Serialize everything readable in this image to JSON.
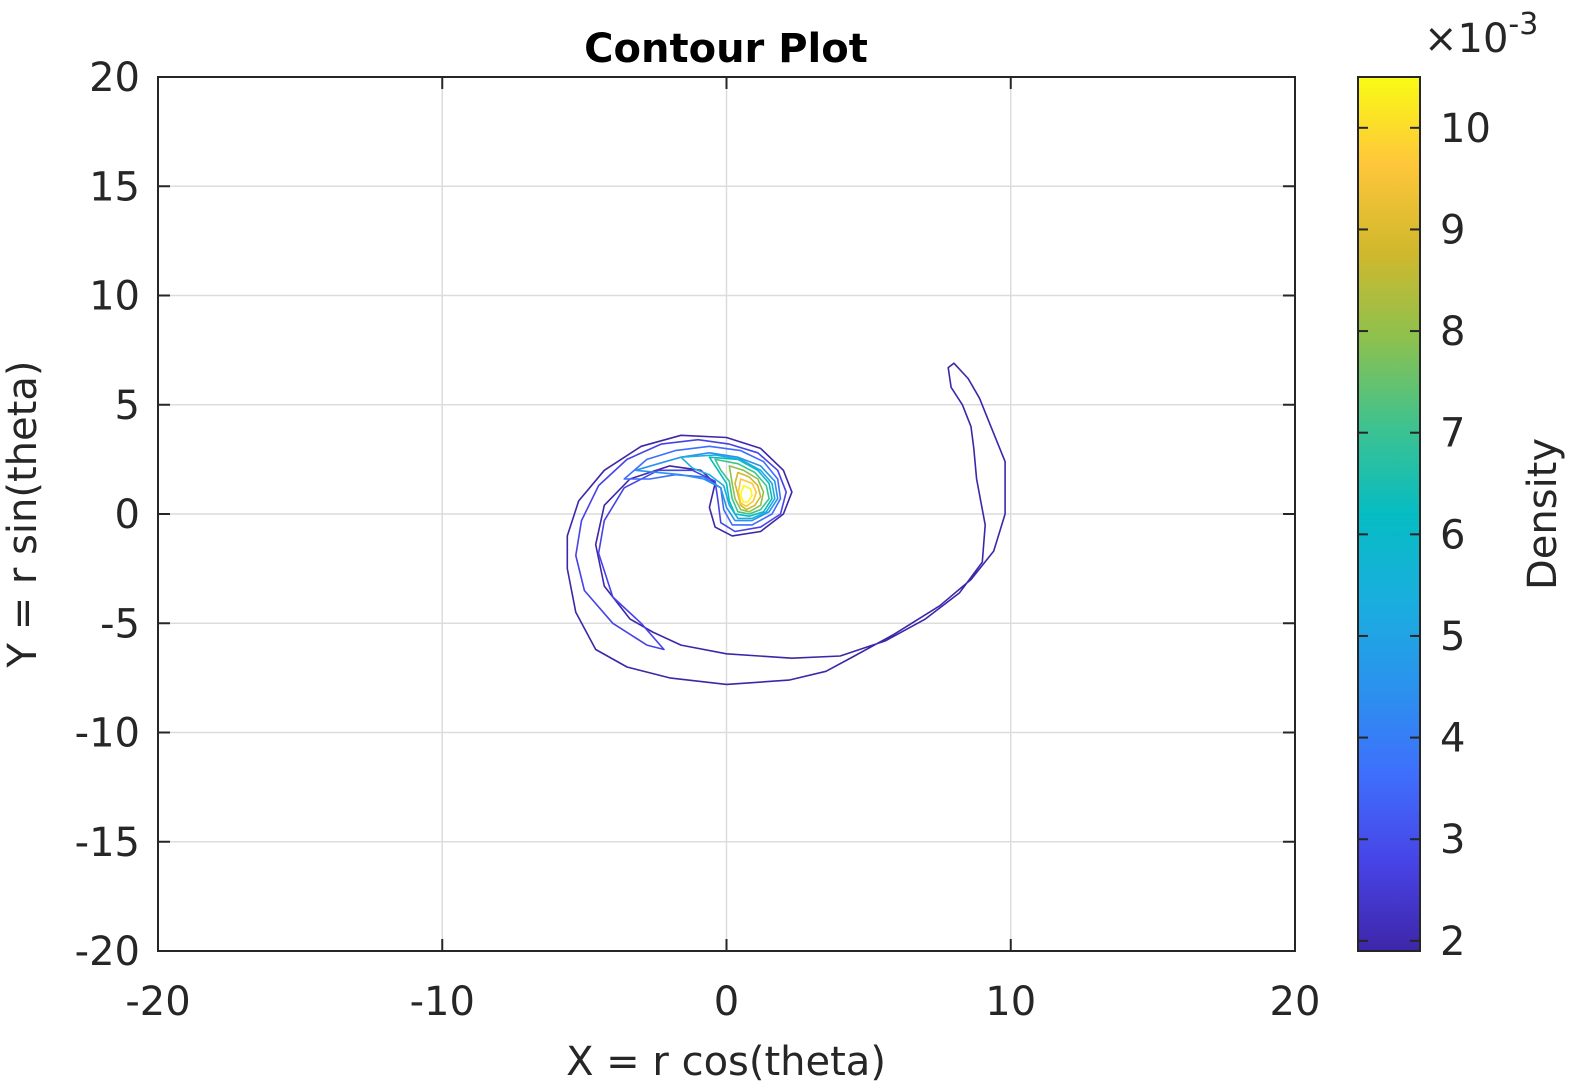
{
  "chart_data": {
    "type": "contour",
    "title": "Contour Plot",
    "xlabel": "X = r cos(theta)",
    "ylabel": "Y = r sin(theta)",
    "xlim": [
      -20,
      20
    ],
    "ylim": [
      -20,
      20
    ],
    "xticks": [
      -20,
      -10,
      0,
      10,
      20
    ],
    "yticks": [
      -20,
      -15,
      -10,
      -5,
      0,
      5,
      10,
      15,
      20
    ],
    "xtick_labels": [
      "-20",
      "-10",
      "0",
      "10",
      "20"
    ],
    "ytick_labels": [
      "-20",
      "-15",
      "-10",
      "-5",
      "0",
      "5",
      "10",
      "15",
      "20"
    ],
    "grid": true,
    "colorbar": {
      "label": "Density",
      "range": [
        1.9,
        10.5
      ],
      "ticks": [
        2,
        3,
        4,
        5,
        6,
        7,
        8,
        9,
        10
      ],
      "tick_labels": [
        "2",
        "3",
        "4",
        "5",
        "6",
        "7",
        "8",
        "9",
        "10"
      ],
      "multiplier": "×10",
      "exponent": "-3",
      "colormap": [
        "#3e26a8",
        "#4743e6",
        "#3f6efc",
        "#2b92ee",
        "#1aaede",
        "#06bcc3",
        "#3ec28f",
        "#8cc14e",
        "#d1b82d",
        "#fec63a",
        "#f9fb15"
      ]
    },
    "contours": [
      {
        "level": 2.2,
        "color": "#3e26a8",
        "points": [
          [
            8.0,
            6.9
          ],
          [
            8.5,
            6.2
          ],
          [
            8.9,
            5.3
          ],
          [
            9.3,
            4.0
          ],
          [
            9.8,
            2.4
          ],
          [
            9.8,
            0.0
          ],
          [
            9.4,
            -1.7
          ],
          [
            8.6,
            -3.0
          ],
          [
            7.5,
            -4.2
          ],
          [
            5.9,
            -5.5
          ],
          [
            4.5,
            -6.5
          ],
          [
            3.5,
            -7.2
          ],
          [
            2.2,
            -7.6
          ],
          [
            0.0,
            -7.8
          ],
          [
            -2.0,
            -7.5
          ],
          [
            -3.5,
            -7.0
          ],
          [
            -4.6,
            -6.2
          ],
          [
            -5.3,
            -4.5
          ],
          [
            -5.6,
            -2.5
          ],
          [
            -5.6,
            -1.0
          ],
          [
            -5.2,
            0.6
          ],
          [
            -4.3,
            2.0
          ],
          [
            -3.0,
            3.1
          ],
          [
            -1.6,
            3.6
          ],
          [
            0.0,
            3.5
          ],
          [
            1.2,
            3.0
          ],
          [
            2.0,
            2.0
          ],
          [
            2.3,
            1.0
          ],
          [
            2.0,
            0.0
          ],
          [
            1.2,
            -0.8
          ],
          [
            0.2,
            -1.0
          ],
          [
            -0.4,
            -0.6
          ],
          [
            -0.6,
            0.3
          ],
          [
            -0.4,
            1.4
          ],
          [
            -0.9,
            2.0
          ],
          [
            -2.0,
            2.2
          ],
          [
            -3.4,
            1.6
          ],
          [
            -4.3,
            0.4
          ],
          [
            -4.6,
            -1.4
          ],
          [
            -4.3,
            -3.3
          ],
          [
            -3.4,
            -4.8
          ],
          [
            -2.6,
            -5.4
          ],
          [
            -1.6,
            -6.0
          ],
          [
            0.0,
            -6.4
          ],
          [
            2.3,
            -6.6
          ],
          [
            4.0,
            -6.5
          ],
          [
            5.6,
            -5.8
          ],
          [
            7.0,
            -4.8
          ],
          [
            8.2,
            -3.6
          ],
          [
            9.0,
            -2.2
          ],
          [
            9.1,
            -0.5
          ],
          [
            8.8,
            1.6
          ],
          [
            8.7,
            3.0
          ],
          [
            8.6,
            4.0
          ],
          [
            8.3,
            5.0
          ],
          [
            7.9,
            5.8
          ],
          [
            7.8,
            6.7
          ],
          [
            8.0,
            6.9
          ]
        ],
        "closed": true
      },
      {
        "level": 3.0,
        "color": "#4743e6",
        "points": [
          [
            -1.0,
            3.4
          ],
          [
            0.1,
            3.2
          ],
          [
            1.1,
            2.8
          ],
          [
            1.8,
            2.0
          ],
          [
            2.1,
            1.0
          ],
          [
            1.9,
            0.0
          ],
          [
            1.2,
            -0.6
          ],
          [
            0.3,
            -0.8
          ],
          [
            -0.2,
            -0.4
          ],
          [
            -0.3,
            0.6
          ],
          [
            -0.4,
            1.5
          ],
          [
            -1.2,
            2.0
          ],
          [
            -2.4,
            2.0
          ],
          [
            -3.6,
            1.2
          ],
          [
            -4.3,
            -0.3
          ],
          [
            -4.5,
            -1.8
          ],
          [
            -4.0,
            -3.8
          ],
          [
            -3.0,
            -5.0
          ],
          [
            -2.2,
            -6.2
          ],
          [
            -2.8,
            -6.0
          ],
          [
            -4.0,
            -5.0
          ],
          [
            -5.0,
            -3.5
          ],
          [
            -5.3,
            -1.9
          ],
          [
            -5.1,
            -0.3
          ],
          [
            -4.5,
            1.3
          ],
          [
            -3.5,
            2.5
          ],
          [
            -2.3,
            3.2
          ],
          [
            -1.0,
            3.4
          ]
        ],
        "closed": true
      },
      {
        "level": 3.9,
        "color": "#3f6efc",
        "points": [
          [
            -3.6,
            1.6
          ],
          [
            -2.8,
            2.5
          ],
          [
            -1.8,
            2.9
          ],
          [
            -0.6,
            3.1
          ],
          [
            0.5,
            2.9
          ],
          [
            1.3,
            2.4
          ],
          [
            1.8,
            1.6
          ],
          [
            1.9,
            0.7
          ],
          [
            1.6,
            0.0
          ],
          [
            0.9,
            -0.5
          ],
          [
            0.2,
            -0.5
          ],
          [
            -0.1,
            0.2
          ],
          [
            -0.2,
            1.2
          ],
          [
            -0.8,
            1.7
          ],
          [
            -1.8,
            1.8
          ],
          [
            -2.7,
            1.6
          ],
          [
            -3.6,
            1.6
          ]
        ],
        "closed": true
      },
      {
        "level": 4.8,
        "color": "#2b92ee",
        "points": [
          [
            -1.6,
            2.6
          ],
          [
            -0.6,
            2.8
          ],
          [
            0.4,
            2.6
          ],
          [
            1.2,
            2.2
          ],
          [
            1.7,
            1.5
          ],
          [
            1.8,
            0.7
          ],
          [
            1.5,
            0.1
          ],
          [
            0.9,
            -0.3
          ],
          [
            0.3,
            -0.3
          ],
          [
            0.0,
            0.3
          ],
          [
            -0.2,
            1.2
          ],
          [
            -0.8,
            1.6
          ],
          [
            -1.6,
            1.8
          ],
          [
            -3.2,
            2.0
          ],
          [
            -2.4,
            2.3
          ],
          [
            -1.6,
            2.6
          ]
        ],
        "closed": true
      },
      {
        "level": 5.6,
        "color": "#1aaede",
        "points": [
          [
            -1.6,
            2.6
          ],
          [
            -0.4,
            2.7
          ],
          [
            0.5,
            2.5
          ],
          [
            1.2,
            2.0
          ],
          [
            1.6,
            1.4
          ],
          [
            1.7,
            0.7
          ],
          [
            1.4,
            0.1
          ],
          [
            0.9,
            -0.2
          ],
          [
            0.4,
            -0.2
          ],
          [
            0.1,
            0.4
          ],
          [
            -0.1,
            1.3
          ],
          [
            -0.6,
            1.8
          ],
          [
            -1.2,
            2.1
          ],
          [
            -1.6,
            2.6
          ]
        ],
        "closed": true
      },
      {
        "level": 6.5,
        "color": "#06bcc3",
        "points": [
          [
            -0.6,
            2.6
          ],
          [
            0.4,
            2.5
          ],
          [
            1.1,
            2.0
          ],
          [
            1.5,
            1.4
          ],
          [
            1.6,
            0.7
          ],
          [
            1.3,
            0.1
          ],
          [
            0.8,
            -0.1
          ],
          [
            0.3,
            0.0
          ],
          [
            0.1,
            0.6
          ],
          [
            0.0,
            1.4
          ],
          [
            -0.3,
            2.0
          ],
          [
            -0.6,
            2.6
          ]
        ],
        "closed": true
      },
      {
        "level": 7.3,
        "color": "#3ec28f",
        "points": [
          [
            -0.4,
            2.5
          ],
          [
            0.4,
            2.3
          ],
          [
            1.0,
            1.9
          ],
          [
            1.4,
            1.3
          ],
          [
            1.5,
            0.7
          ],
          [
            1.2,
            0.2
          ],
          [
            0.8,
            0.0
          ],
          [
            0.4,
            0.1
          ],
          [
            0.2,
            0.7
          ],
          [
            0.1,
            1.5
          ],
          [
            -0.2,
            2.0
          ],
          [
            -0.4,
            2.5
          ]
        ],
        "closed": true
      },
      {
        "level": 8.1,
        "color": "#8cc14e",
        "points": [
          [
            0.1,
            2.2
          ],
          [
            0.6,
            2.0
          ],
          [
            1.1,
            1.6
          ],
          [
            1.3,
            1.0
          ],
          [
            1.2,
            0.4
          ],
          [
            0.8,
            0.1
          ],
          [
            0.5,
            0.2
          ],
          [
            0.3,
            0.7
          ],
          [
            0.2,
            1.4
          ],
          [
            0.1,
            2.2
          ]
        ],
        "closed": true
      },
      {
        "level": 8.9,
        "color": "#d1b82d",
        "points": [
          [
            0.4,
            1.9
          ],
          [
            0.8,
            1.7
          ],
          [
            1.1,
            1.3
          ],
          [
            1.2,
            0.8
          ],
          [
            1.0,
            0.4
          ],
          [
            0.7,
            0.2
          ],
          [
            0.5,
            0.4
          ],
          [
            0.4,
            0.9
          ],
          [
            0.3,
            1.4
          ],
          [
            0.4,
            1.9
          ]
        ],
        "closed": true
      },
      {
        "level": 9.6,
        "color": "#fec63a",
        "points": [
          [
            0.5,
            1.6
          ],
          [
            0.9,
            1.4
          ],
          [
            1.05,
            1.0
          ],
          [
            0.95,
            0.6
          ],
          [
            0.7,
            0.35
          ],
          [
            0.5,
            0.5
          ],
          [
            0.42,
            1.0
          ],
          [
            0.5,
            1.6
          ]
        ],
        "closed": true
      },
      {
        "level": 10.2,
        "color": "#f9fb15",
        "points": [
          [
            0.6,
            1.3
          ],
          [
            0.85,
            1.15
          ],
          [
            0.9,
            0.85
          ],
          [
            0.75,
            0.55
          ],
          [
            0.58,
            0.55
          ],
          [
            0.5,
            0.9
          ],
          [
            0.6,
            1.3
          ]
        ],
        "closed": true
      }
    ]
  }
}
